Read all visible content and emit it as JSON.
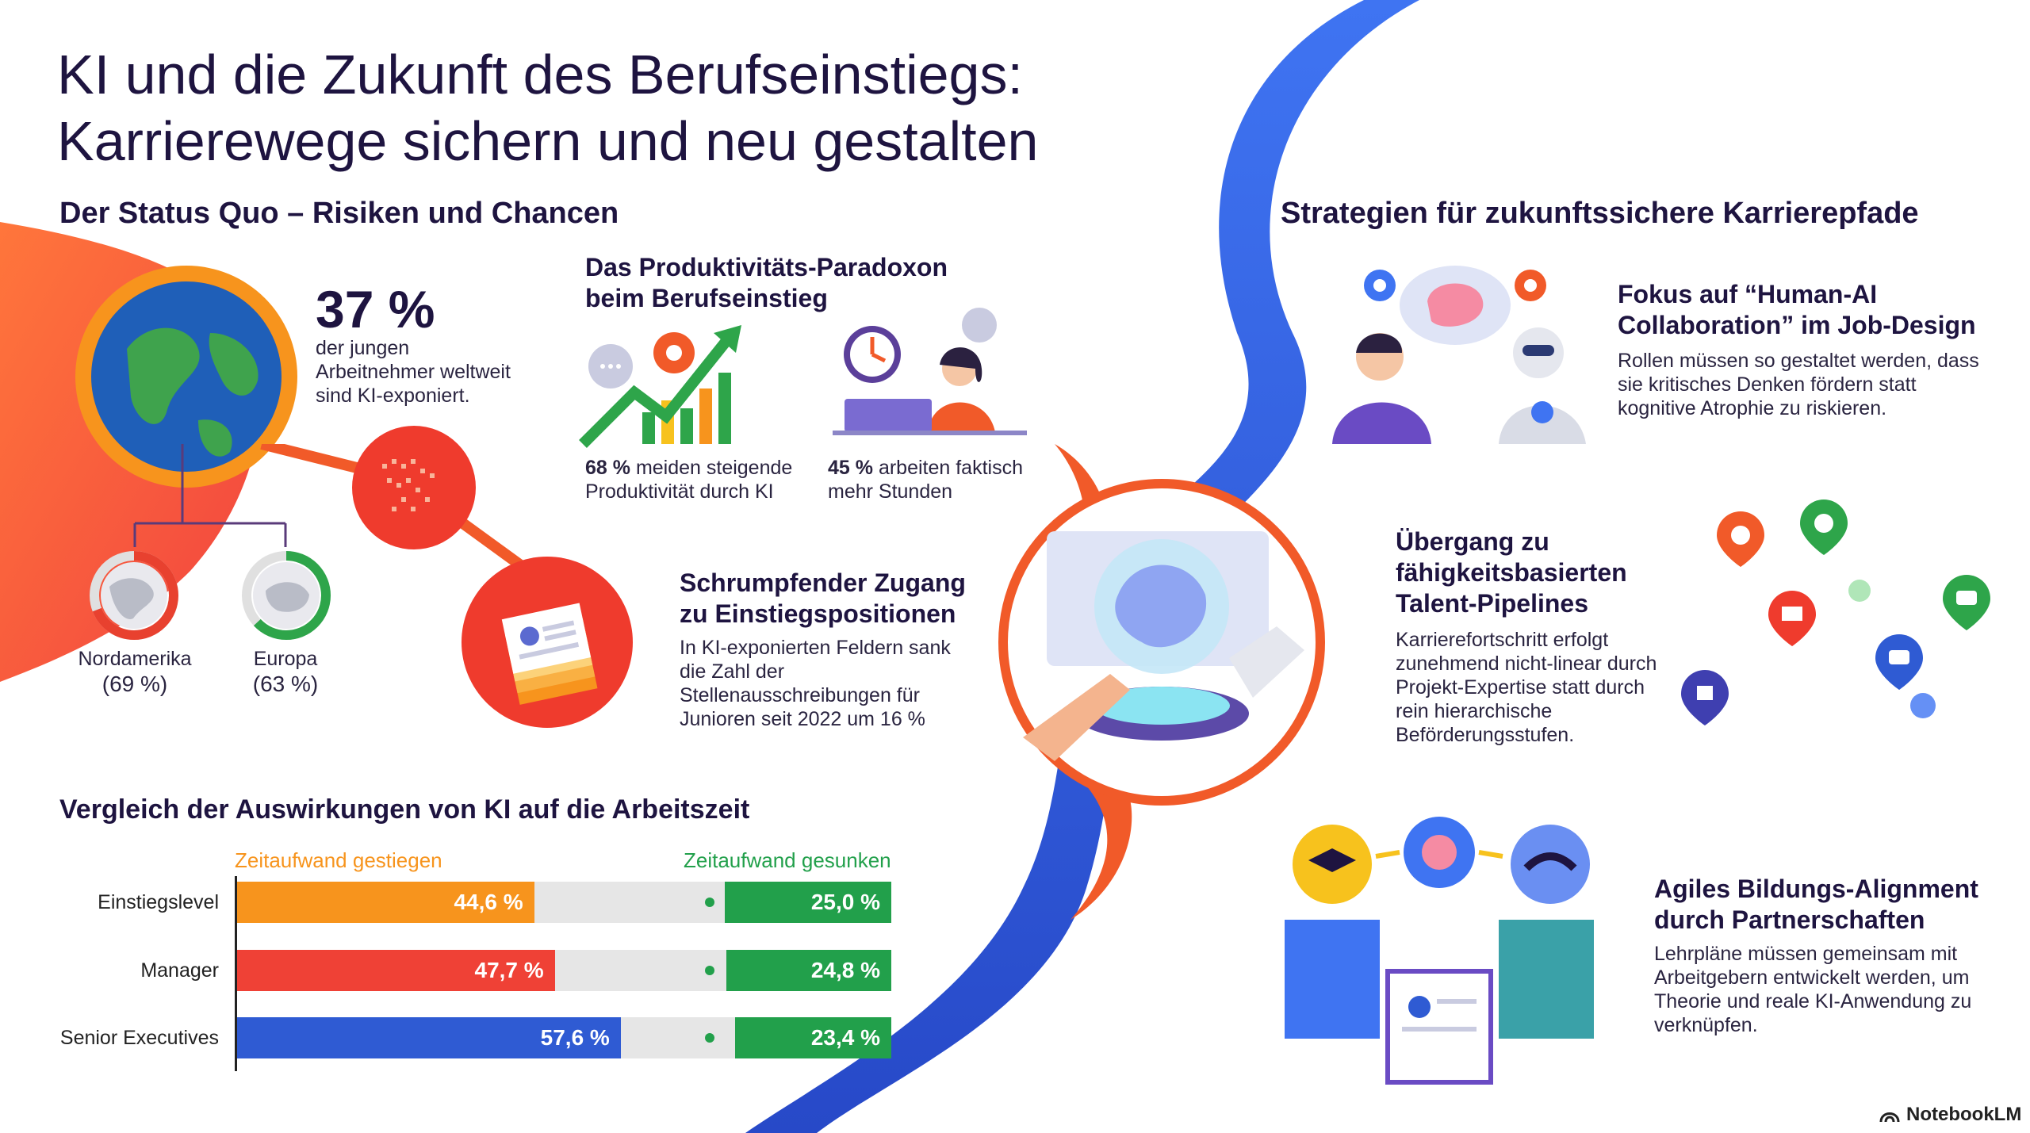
{
  "title": {
    "line1": "KI und die Zukunft des Berufseinstiegs:",
    "line2": "Karrierewege sichern und neu gestalten"
  },
  "status_quo": {
    "heading": "Der Status Quo – Risiken und Chancen",
    "headline_value": "37 %",
    "headline_text": "der jungen Arbeitnehmer weltweit sind KI-exponiert.",
    "regions": [
      {
        "name": "Nordamerika",
        "value_label": "(69 %)",
        "value": 69,
        "color": "#e8412f"
      },
      {
        "name": "Europa",
        "value_label": "(63 %)",
        "value": 63,
        "color": "#2ea54a"
      }
    ]
  },
  "paradox": {
    "heading": "Das Produktivitäts-Paradoxon beim Berufseinstieg",
    "stat1_value": "68 %",
    "stat1_text": "meiden steigende Produktivität durch KI",
    "stat2_value": "45 %",
    "stat2_text": "arbeiten faktisch mehr Stunden"
  },
  "shrinking": {
    "heading": "Schrumpfender Zugang zu Einstiegspositionen",
    "text": "In KI-exponierten Feldern sank die Zahl der Stellenausschreibungen für Junioren seit 2022 um 16 %"
  },
  "comparison": {
    "heading": "Vergleich der Auswirkungen von KI auf die Arbeitszeit",
    "legend_up": "Zeitaufwand gestiegen",
    "legend_down": "Zeitaufwand gesunken",
    "color_up_orange": "#f7941d",
    "color_up_red": "#ef4136",
    "color_up_blue": "#2f5bd3",
    "color_down": "#22a04b",
    "rows": [
      {
        "label": "Einstiegslevel",
        "up": 44.6,
        "up_label": "44,6 %",
        "down": 25.0,
        "down_label": "25,0 %"
      },
      {
        "label": "Manager",
        "up": 47.7,
        "up_label": "47,7 %",
        "down": 24.8,
        "down_label": "24,8 %"
      },
      {
        "label": "Senior Executives",
        "up": 57.6,
        "up_label": "57,6 %",
        "down": 23.4,
        "down_label": "23,4 %"
      }
    ]
  },
  "strategies": {
    "heading": "Strategien für zukunftssichere Karrierepfade",
    "s1_heading": "Fokus auf “Human-AI Collaboration” im Job-Design",
    "s1_text": "Rollen müssen so gestaltet werden, dass sie kritisches Denken fördern statt kognitive Atrophie zu riskieren.",
    "s2_heading": "Übergang zu fähigkeitsbasierten Talent-Pipelines",
    "s2_text": "Karrierefortschritt erfolgt zunehmend nicht-linear durch Projekt-Expertise statt durch rein hierarchische Beförderungsstufen.",
    "s3_heading": "Agiles Bildungs-Alignment durch Partnerschaften",
    "s3_text": "Lehrpläne müssen gemeinsam mit Arbeitgebern entwickelt werden, um Theorie und reale KI-Anwendung zu verknüpfen."
  },
  "brand": "NotebookLM"
}
